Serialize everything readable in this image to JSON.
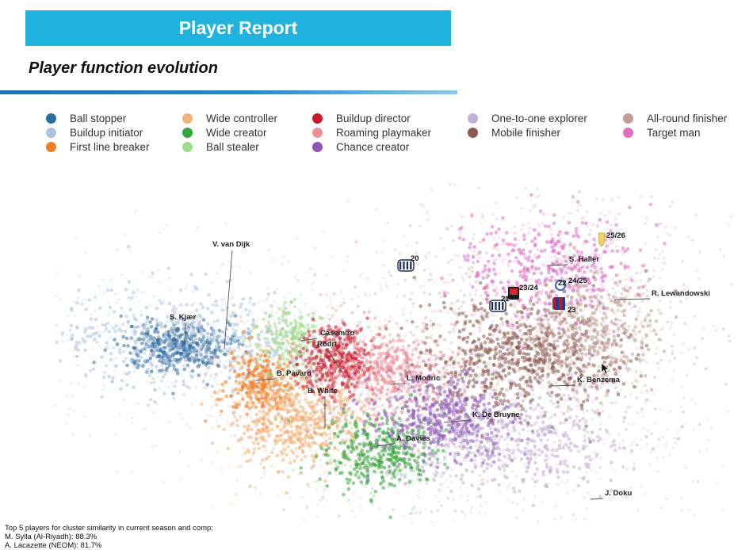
{
  "header": {
    "title": "Player Report",
    "banner_color": "#1fb3de"
  },
  "section": {
    "subtitle": "Player function evolution"
  },
  "chart_data": {
    "type": "scatter",
    "title": "Player function evolution",
    "legend": [
      {
        "label": "Ball stopper",
        "color": "#2f6ea1"
      },
      {
        "label": "Buildup initiator",
        "color": "#aec3df"
      },
      {
        "label": "First line breaker",
        "color": "#f07e26"
      },
      {
        "label": "Wide controller",
        "color": "#f2b277"
      },
      {
        "label": "Wide creator",
        "color": "#34a53a"
      },
      {
        "label": "Ball stealer",
        "color": "#9fdc8e"
      },
      {
        "label": "Buildup director",
        "color": "#c8192b"
      },
      {
        "label": "Roaming playmaker",
        "color": "#ef9099"
      },
      {
        "label": "Chance creator",
        "color": "#8d57b8"
      },
      {
        "label": "One-to-one explorer",
        "color": "#c2b0d6"
      },
      {
        "label": "Mobile finisher",
        "color": "#8c5a4d"
      },
      {
        "label": "All-round finisher",
        "color": "#c19c95"
      },
      {
        "label": "Target man",
        "color": "#df6fc8"
      }
    ],
    "players": [
      {
        "name": "V. van Dijk"
      },
      {
        "name": "S. Kjær"
      },
      {
        "name": "Casemiro"
      },
      {
        "name": "Rodri"
      },
      {
        "name": "B. Pavard"
      },
      {
        "name": "B. White"
      },
      {
        "name": "L. Modric"
      },
      {
        "name": "K. De Bruyne"
      },
      {
        "name": "A. Davies"
      },
      {
        "name": "S. Haller"
      },
      {
        "name": "R. Lewandowski"
      },
      {
        "name": "K. Benzema"
      },
      {
        "name": "J. Doku"
      }
    ],
    "trajectory_labels": [
      "20",
      "21",
      "22",
      "23",
      "23/24",
      "24/25",
      "25/26"
    ]
  },
  "footer": {
    "heading": "Top 5 players for cluster similarity in current season and comp:",
    "lines": [
      "M. Sylla (Al-Riyadh): 88.3%",
      "A. Lacazette (NEOM): 81.7%"
    ]
  }
}
